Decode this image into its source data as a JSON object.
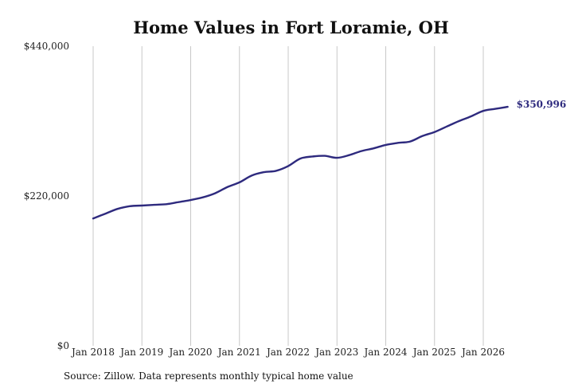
{
  "chart_data": {
    "type": "line",
    "title": "Home Values in Fort Loramie, OH",
    "source": "Source: Zillow. Data represents monthly typical home value",
    "ylim": [
      0,
      440000
    ],
    "y_ticks": [
      "$0",
      "$220,000",
      "$440,000"
    ],
    "x_ticks": [
      "Jan 2018",
      "Jan 2019",
      "Jan 2020",
      "Jan 2021",
      "Jan 2022",
      "Jan 2023",
      "Jan 2024",
      "Jan 2025",
      "Jan 2026"
    ],
    "grid": "vertical",
    "colors": {
      "line": "#2e2a7e",
      "grid": "#c8c8c8"
    },
    "end_label": "$350,996",
    "series": [
      {
        "x": [
          "2018-01",
          "2018-04",
          "2018-07",
          "2018-10",
          "2019-01",
          "2019-04",
          "2019-07",
          "2019-10",
          "2020-01",
          "2020-04",
          "2020-07",
          "2020-10",
          "2021-01",
          "2021-04",
          "2021-07",
          "2021-10",
          "2022-01",
          "2022-04",
          "2022-07",
          "2022-10",
          "2023-01",
          "2023-04",
          "2023-07",
          "2023-10",
          "2024-01",
          "2024-04",
          "2024-07",
          "2024-10",
          "2025-01",
          "2025-04",
          "2025-07",
          "2025-10",
          "2026-01",
          "2026-04",
          "2026-07"
        ],
        "values": [
          187000,
          194000,
          201000,
          205000,
          206000,
          207000,
          208000,
          211000,
          214000,
          218000,
          224000,
          233000,
          240000,
          250000,
          255000,
          257000,
          264000,
          275000,
          278000,
          279000,
          276000,
          280000,
          286000,
          290000,
          295000,
          298000,
          300000,
          308000,
          314000,
          322000,
          330000,
          337000,
          345000,
          348000,
          350996
        ]
      }
    ]
  }
}
